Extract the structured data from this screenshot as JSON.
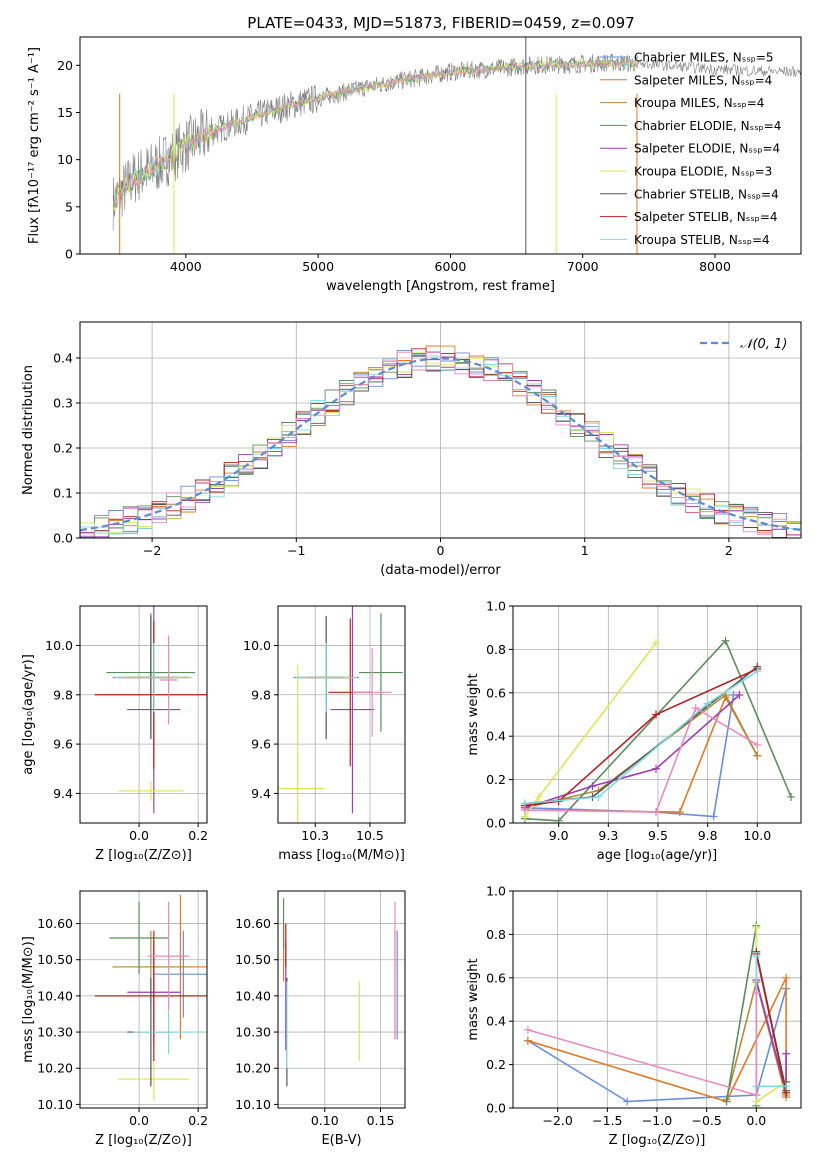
{
  "figure": {
    "title": "PLATE=0433, MJD=51873, FIBERID=0459, z=0.097"
  },
  "colors": {
    "model_colors": [
      "#6a8fd8",
      "#e07b2a",
      "#b08a3c",
      "#5e8c5e",
      "#9b3fb5",
      "#d8e85a",
      "#555555",
      "#b22222",
      "#7fd8e0",
      "#e88bc0"
    ],
    "normal_curve": "#5b8bd0",
    "observed": "#808080"
  },
  "chart_data": [
    {
      "id": "spectrum",
      "type": "line",
      "title": "PLATE=0433, MJD=51873, FIBERID=0459, z=0.097",
      "xlabel": "wavelength [Angstrom, rest frame]",
      "ylabel": "Flux [fλ10⁻¹⁷ erg cm⁻² s⁻¹ A⁻¹]",
      "xlim": [
        3200,
        8650
      ],
      "ylim": [
        0,
        23
      ],
      "xticks": [
        4000,
        5000,
        6000,
        7000,
        8000
      ],
      "yticks": [
        0,
        5,
        10,
        15,
        20
      ],
      "grid": false,
      "legend_position": "top-right",
      "series": [
        {
          "name": "Chabrier MILES, N_SSP=5"
        },
        {
          "name": "Salpeter MILES, N_SSP=4"
        },
        {
          "name": "Kroupa MILES, N_SSP=4"
        },
        {
          "name": "Chabrier ELODIE, N_SSP=4"
        },
        {
          "name": "Salpeter ELODIE, N_SSP=4"
        },
        {
          "name": "Kroupa ELODIE, N_SSP=3"
        },
        {
          "name": "Chabrier STELIB, N_SSP=4"
        },
        {
          "name": "Salpeter STELIB, N_SSP=4"
        },
        {
          "name": "Kroupa STELIB, N_SSP=4"
        }
      ],
      "continuum": {
        "x": [
          3450,
          3600,
          3800,
          4000,
          4200,
          4500,
          4800,
          5000,
          5300,
          5600,
          6000,
          6300,
          6600,
          6900,
          7200,
          7400,
          7600,
          7800,
          8000,
          8300,
          8650
        ],
        "y": [
          5.5,
          8.0,
          9.5,
          11.5,
          13.0,
          14.5,
          15.8,
          16.5,
          17.5,
          18.3,
          19.3,
          19.6,
          20.0,
          20.1,
          20.3,
          20.2,
          20.0,
          19.8,
          19.6,
          19.4,
          19.3
        ]
      }
    },
    {
      "id": "residuals",
      "type": "line",
      "xlabel": "(data-model)/error",
      "ylabel": "Normed distribution",
      "xlim": [
        -2.5,
        2.5
      ],
      "ylim": [
        0,
        0.48
      ],
      "xticks": [
        -2,
        -1,
        0,
        1,
        2
      ],
      "yticks": [
        0.0,
        0.1,
        0.2,
        0.3,
        0.4
      ],
      "grid": true,
      "legend_position": "top-right",
      "legend_label": "𝒩(0, 1)"
    },
    {
      "id": "age_vs_Z",
      "type": "scatter",
      "xlabel": "Z [log₁₀(Z/Z⊙)]",
      "ylabel": "age  [log₁₀(age/yr)]",
      "xlim": [
        -0.2,
        0.23
      ],
      "ylim": [
        9.28,
        10.16
      ],
      "xticks": [
        0.0,
        0.2
      ],
      "yticks": [
        9.4,
        9.6,
        9.8,
        10.0
      ],
      "grid": true,
      "points": [
        {
          "x": 0.05,
          "y": 9.87,
          "xerr": 0.12,
          "yerr": 0.15,
          "c": 0
        },
        {
          "x": 0.04,
          "y": 9.87,
          "xerr": 0.13,
          "yerr": 0.12,
          "c": 1
        },
        {
          "x": 0.05,
          "y": 9.87,
          "xerr": 0.12,
          "yerr": 0.13,
          "c": 2
        },
        {
          "x": 0.04,
          "y": 9.89,
          "xerr": 0.15,
          "yerr": 0.24,
          "c": 3
        },
        {
          "x": 0.05,
          "y": 9.74,
          "xerr": 0.09,
          "yerr": 0.42,
          "c": 4
        },
        {
          "x": 0.04,
          "y": 9.41,
          "xerr": 0.11,
          "yerr": 0.04,
          "c": 5
        },
        {
          "x": 0.04,
          "y": 9.87,
          "xerr": 0.08,
          "yerr": 0.25,
          "c": 6
        },
        {
          "x": 0.05,
          "y": 9.8,
          "xerr": 0.2,
          "yerr": 0.3,
          "c": 7
        },
        {
          "x": 0.05,
          "y": 9.87,
          "xerr": 0.13,
          "yerr": 0.14,
          "c": 8
        },
        {
          "x": 0.1,
          "y": 9.86,
          "xerr": 0.03,
          "yerr": 0.18,
          "c": 9
        }
      ]
    },
    {
      "id": "age_vs_mass",
      "type": "scatter",
      "xlabel": "mass [log₁₀(M/M⊙)]",
      "ylabel": "",
      "xlim": [
        10.08,
        10.66
      ],
      "ylim": [
        9.28,
        10.16
      ],
      "xticks": [
        10.25,
        10.5
      ],
      "yticks": [
        9.4,
        9.6,
        9.8,
        10.0
      ],
      "grid": true,
      "points": [
        {
          "x": 10.3,
          "y": 9.87,
          "xerr": 0.15,
          "yerr": 0.14,
          "c": 0
        },
        {
          "x": 10.3,
          "y": 9.87,
          "xerr": 0.12,
          "yerr": 0.12,
          "c": 1
        },
        {
          "x": 10.3,
          "y": 9.87,
          "xerr": 0.13,
          "yerr": 0.13,
          "c": 2
        },
        {
          "x": 10.55,
          "y": 9.89,
          "xerr": 0.1,
          "yerr": 0.24,
          "c": 3
        },
        {
          "x": 10.42,
          "y": 9.74,
          "xerr": 0.1,
          "yerr": 0.42,
          "c": 4
        },
        {
          "x": 10.17,
          "y": 9.42,
          "xerr": 0.12,
          "yerr": 0.5,
          "c": 5
        },
        {
          "x": 10.3,
          "y": 9.87,
          "xerr": 0.08,
          "yerr": 0.25,
          "c": 6
        },
        {
          "x": 10.41,
          "y": 9.81,
          "xerr": 0.1,
          "yerr": 0.3,
          "c": 7
        },
        {
          "x": 10.3,
          "y": 9.87,
          "xerr": 0.14,
          "yerr": 0.14,
          "c": 8
        },
        {
          "x": 10.51,
          "y": 9.81,
          "xerr": 0.09,
          "yerr": 0.18,
          "c": 9
        }
      ]
    },
    {
      "id": "weight_vs_age",
      "type": "line",
      "xlabel": "age  [log₁₀(age/yr)]",
      "ylabel": "mass weight",
      "xlim": [
        8.77,
        10.22
      ],
      "ylim": [
        0,
        1
      ],
      "xticks": [
        9.0,
        9.25,
        9.5,
        9.75,
        10.0
      ],
      "yticks": [
        0.0,
        0.2,
        0.4,
        0.6,
        0.8,
        1.0
      ],
      "grid": true,
      "series": [
        {
          "x": [
            8.83,
            9.49,
            9.78,
            9.88
          ],
          "y": [
            0.07,
            0.05,
            0.03,
            0.59
          ],
          "c": 0
        },
        {
          "x": [
            8.83,
            9.61,
            9.84,
            10.0
          ],
          "y": [
            0.06,
            0.05,
            0.58,
            0.31
          ],
          "c": 1
        },
        {
          "x": [
            8.83,
            9.2,
            9.84,
            10.0
          ],
          "y": [
            0.07,
            0.15,
            0.59,
            0.31
          ],
          "c": 2
        },
        {
          "x": [
            8.83,
            9.0,
            9.84,
            10.17
          ],
          "y": [
            0.02,
            0.01,
            0.84,
            0.12
          ],
          "c": 3
        },
        {
          "x": [
            8.83,
            9.17,
            9.49,
            9.91
          ],
          "y": [
            0.07,
            0.17,
            0.25,
            0.59
          ],
          "c": 4
        },
        {
          "x": [
            8.83,
            8.9,
            9.49
          ],
          "y": [
            0.03,
            0.12,
            0.83
          ],
          "c": 5
        },
        {
          "x": [
            8.83,
            9.17,
            10.0
          ],
          "y": [
            0.09,
            0.12,
            0.72
          ],
          "c": 6
        },
        {
          "x": [
            8.83,
            9.0,
            9.49,
            10.0
          ],
          "y": [
            0.08,
            0.1,
            0.5,
            0.71
          ],
          "c": 7
        },
        {
          "x": [
            8.83,
            9.2,
            9.75,
            10.0
          ],
          "y": [
            0.09,
            0.12,
            0.55,
            0.7
          ],
          "c": 8
        },
        {
          "x": [
            8.83,
            9.49,
            9.69,
            10.0
          ],
          "y": [
            0.06,
            0.05,
            0.53,
            0.36
          ],
          "c": 9
        }
      ]
    },
    {
      "id": "mass_vs_Z",
      "type": "scatter",
      "xlabel": "Z [log₁₀(Z/Z⊙)]",
      "ylabel": "mass [log₁₀(M/M⊙)]",
      "xlim": [
        -0.2,
        0.23
      ],
      "ylim": [
        10.09,
        10.69
      ],
      "xticks": [
        0.0,
        0.2
      ],
      "yticks": [
        10.1,
        10.2,
        10.3,
        10.4,
        10.5,
        10.6
      ],
      "grid": true,
      "points": [
        {
          "x": 0.15,
          "y": 10.46,
          "xerr": 0.1,
          "yerr": 0.12,
          "c": 0
        },
        {
          "x": 0.14,
          "y": 10.48,
          "xerr": 0.12,
          "yerr": 0.2,
          "c": 1
        },
        {
          "x": 0.04,
          "y": 10.48,
          "xerr": 0.13,
          "yerr": 0.1,
          "c": 2
        },
        {
          "x": 0.0,
          "y": 10.56,
          "xerr": 0.1,
          "yerr": 0.1,
          "c": 3
        },
        {
          "x": 0.05,
          "y": 10.41,
          "xerr": 0.09,
          "yerr": 0.14,
          "c": 4
        },
        {
          "x": 0.05,
          "y": 10.17,
          "xerr": 0.12,
          "yerr": 0.06,
          "c": 5
        },
        {
          "x": 0.04,
          "y": 10.3,
          "xerr": 0.08,
          "yerr": 0.15,
          "c": 6
        },
        {
          "x": 0.05,
          "y": 10.4,
          "xerr": 0.2,
          "yerr": 0.18,
          "c": 7
        },
        {
          "x": 0.1,
          "y": 10.3,
          "xerr": 0.12,
          "yerr": 0.06,
          "c": 8
        },
        {
          "x": 0.1,
          "y": 10.51,
          "xerr": 0.07,
          "yerr": 0.15,
          "c": 9
        }
      ]
    },
    {
      "id": "mass_vs_EBV",
      "type": "scatter",
      "xlabel": "E(B-V)",
      "ylabel": "",
      "xlim": [
        0.058,
        0.172
      ],
      "ylim": [
        10.09,
        10.69
      ],
      "xticks": [
        0.1,
        0.15
      ],
      "yticks": [
        10.1,
        10.2,
        10.3,
        10.4,
        10.5,
        10.6
      ],
      "grid": true,
      "points": [
        {
          "x": 0.165,
          "y": 10.43,
          "yerr": 0.15,
          "c": 0
        },
        {
          "x": 0.163,
          "y": 10.43,
          "yerr": 0.15,
          "c": 1
        },
        {
          "x": 0.063,
          "y": 10.52,
          "yerr": 0.08,
          "c": 2
        },
        {
          "x": 0.063,
          "y": 10.6,
          "yerr": 0.07,
          "c": 3
        },
        {
          "x": 0.065,
          "y": 10.4,
          "yerr": 0.15,
          "c": 4
        },
        {
          "x": 0.131,
          "y": 10.33,
          "yerr": 0.11,
          "c": 5
        },
        {
          "x": 0.066,
          "y": 10.3,
          "yerr": 0.15,
          "c": 6
        },
        {
          "x": 0.065,
          "y": 10.54,
          "yerr": 0.06,
          "c": 7
        },
        {
          "x": 0.066,
          "y": 10.32,
          "yerr": 0.12,
          "c": 8
        },
        {
          "x": 0.163,
          "y": 10.47,
          "yerr": 0.19,
          "c": 9
        }
      ]
    },
    {
      "id": "weight_vs_Z",
      "type": "line",
      "xlabel": "Z [log₁₀(Z/Z⊙)]",
      "ylabel": "mass weight",
      "xlim": [
        -2.45,
        0.45
      ],
      "ylim": [
        0,
        1
      ],
      "xticks": [
        -2.0,
        -1.5,
        -1.0,
        -0.5,
        0.0
      ],
      "yticks": [
        0.0,
        0.2,
        0.4,
        0.6,
        0.8,
        1.0
      ],
      "grid": true,
      "series": [
        {
          "x": [
            -2.3,
            -1.3,
            0.0,
            0.3
          ],
          "y": [
            0.31,
            0.03,
            0.06,
            0.55
          ],
          "c": 0
        },
        {
          "x": [
            -2.3,
            -0.3,
            0.3,
            0.3
          ],
          "y": [
            0.31,
            0.03,
            0.6,
            0.06
          ],
          "c": 1
        },
        {
          "x": [
            -0.3,
            0.0,
            0.3
          ],
          "y": [
            0.04,
            0.58,
            0.05
          ],
          "c": 2
        },
        {
          "x": [
            -0.3,
            0.0,
            0.0
          ],
          "y": [
            0.03,
            0.84,
            0.01
          ],
          "c": 3
        },
        {
          "x": [
            0.0,
            0.3,
            0.3
          ],
          "y": [
            0.59,
            0.07,
            0.25
          ],
          "c": 4
        },
        {
          "x": [
            0.0,
            0.0,
            0.3
          ],
          "y": [
            0.83,
            0.03,
            0.12
          ],
          "c": 5
        },
        {
          "x": [
            0.0,
            0.3,
            0.3
          ],
          "y": [
            0.72,
            0.08,
            0.12
          ],
          "c": 6
        },
        {
          "x": [
            0.0,
            0.3
          ],
          "y": [
            0.71,
            0.07
          ],
          "c": 7
        },
        {
          "x": [
            0.0,
            0.0,
            0.3
          ],
          "y": [
            0.7,
            0.1,
            0.1
          ],
          "c": 8
        },
        {
          "x": [
            -2.3,
            0.0,
            0.0
          ],
          "y": [
            0.36,
            0.06,
            0.53
          ],
          "c": 9
        }
      ]
    }
  ]
}
